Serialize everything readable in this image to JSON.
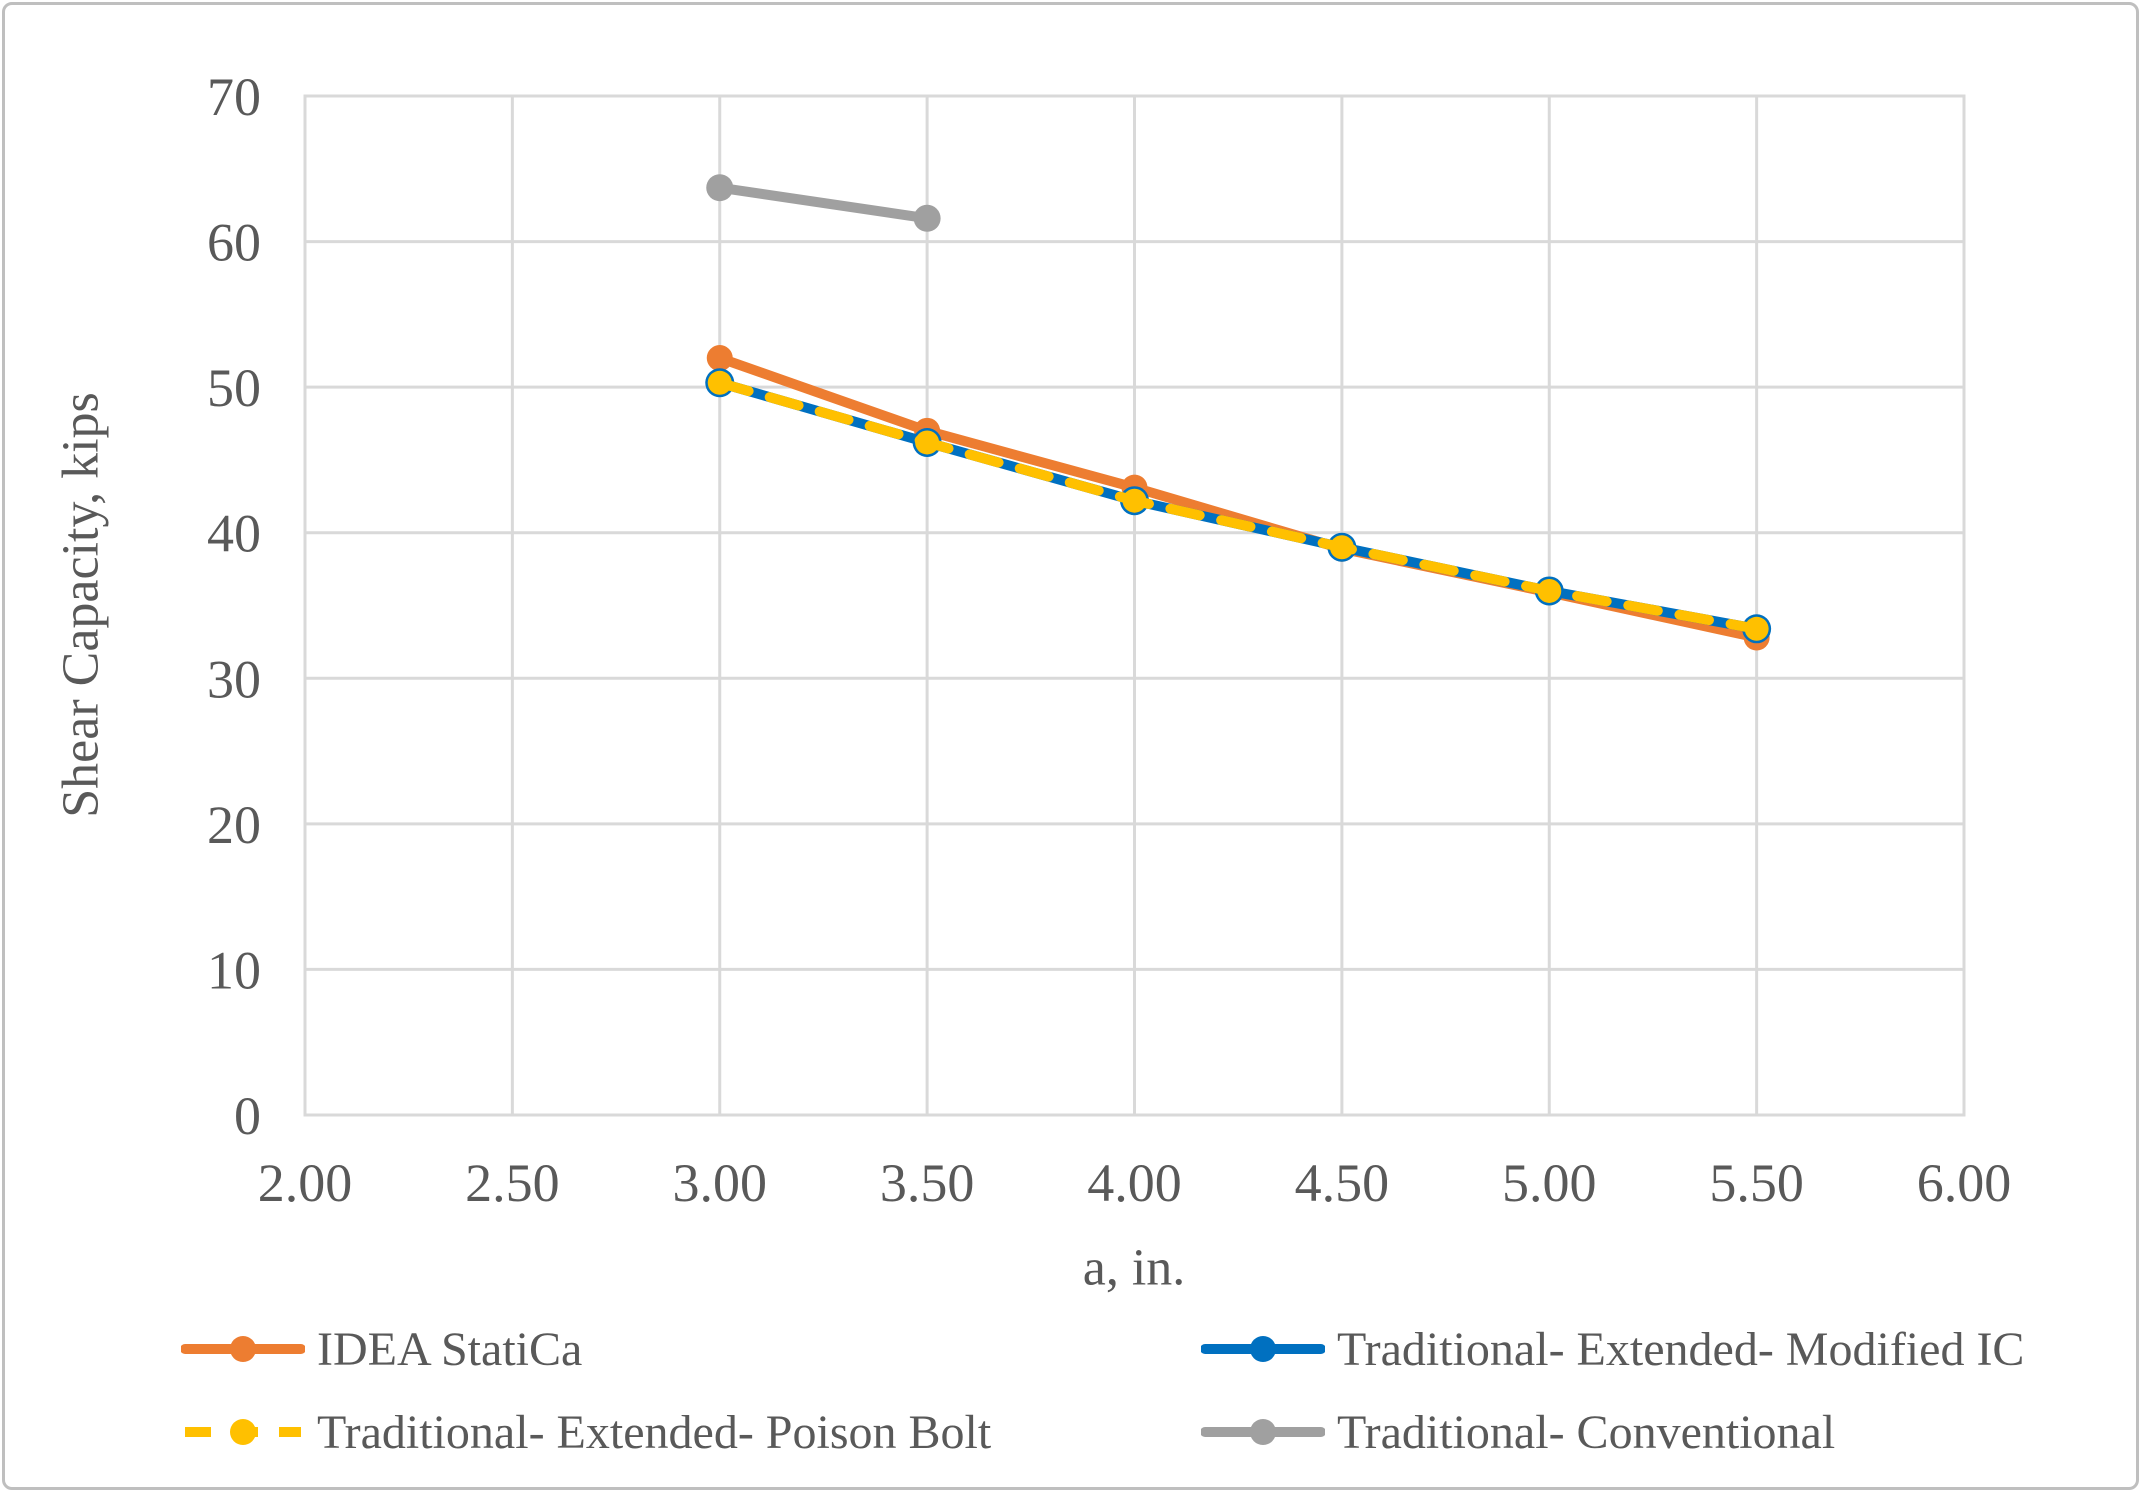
{
  "figure": {
    "background": "#FFFFFF",
    "border_color": "#BFBFBF",
    "text_color": "#595959",
    "gridline_color": "#D9D9D9"
  },
  "chart_data": {
    "type": "line",
    "title": "",
    "xlabel": "a, in.",
    "ylabel": "Shear Capacity, kips",
    "xlim": [
      2.0,
      6.0
    ],
    "ylim": [
      0,
      70
    ],
    "grid": true,
    "legend_position": "bottom, two columns",
    "xticks": {
      "values": [
        2.0,
        2.5,
        3.0,
        3.5,
        4.0,
        4.5,
        5.0,
        5.5,
        6.0
      ],
      "labels": [
        "2.00",
        "2.50",
        "3.00",
        "3.50",
        "4.00",
        "4.50",
        "5.00",
        "5.50",
        "6.00"
      ]
    },
    "yticks": {
      "values": [
        0,
        10,
        20,
        30,
        40,
        50,
        60,
        70
      ],
      "labels": [
        "0",
        "10",
        "20",
        "30",
        "40",
        "50",
        "60",
        "70"
      ]
    },
    "series": [
      {
        "name": "IDEA StatiCa",
        "color": "#ED7D31",
        "line_style": "solid",
        "marker": "circle",
        "marker_r": 13,
        "x": [
          3.0,
          3.5,
          4.0,
          4.5,
          5.0,
          5.5
        ],
        "y": [
          52.0,
          47.0,
          43.1,
          38.9,
          35.9,
          32.8
        ]
      },
      {
        "name": "Traditional- Extended- Modified IC",
        "color": "#0070C0",
        "line_style": "solid",
        "marker": "circle",
        "marker_r": 14.5,
        "x": [
          3.0,
          3.5,
          4.0,
          4.5,
          5.0,
          5.5
        ],
        "y": [
          50.3,
          46.2,
          42.2,
          39.0,
          36.0,
          33.4
        ]
      },
      {
        "name": "Traditional- Extended- Poison Bolt",
        "color": "#FFC000",
        "line_style": "dashed",
        "marker": "circle",
        "marker_r": 12,
        "x": [
          3.0,
          3.5,
          4.0,
          4.5,
          5.0,
          5.5
        ],
        "y": [
          50.3,
          46.2,
          42.2,
          39.0,
          36.0,
          33.4
        ]
      },
      {
        "name": "Traditional- Conventional",
        "color": "#A0A0A0",
        "line_style": "solid",
        "marker": "circle",
        "marker_r": 13.5,
        "x": [
          3.0,
          3.5
        ],
        "y": [
          63.7,
          61.6
        ]
      }
    ]
  }
}
